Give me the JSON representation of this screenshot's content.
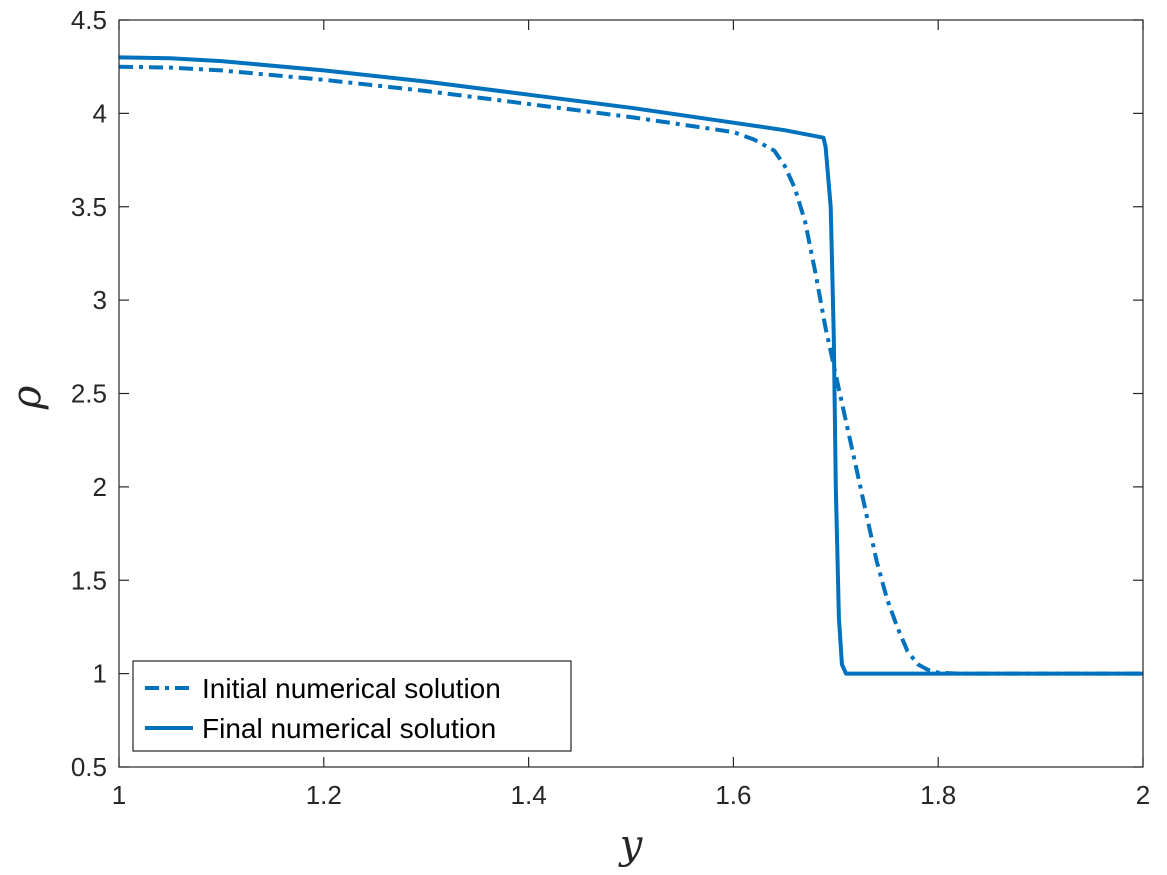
{
  "chart_data": {
    "type": "line",
    "xlabel": "y",
    "ylabel": "ρ",
    "xlim": [
      1,
      2
    ],
    "ylim": [
      0.5,
      4.5
    ],
    "x_ticks": [
      "1",
      "1.2",
      "1.4",
      "1.6",
      "1.8",
      "2"
    ],
    "y_ticks": [
      "0.5",
      "1",
      "1.5",
      "2",
      "2.5",
      "3",
      "3.5",
      "4",
      "4.5"
    ],
    "grid": false,
    "legend_position": "bottom-left",
    "series": [
      {
        "name": "Initial numerical solution",
        "style": "dash-dot",
        "color": "#0072BD",
        "x": [
          1.0,
          1.05,
          1.1,
          1.2,
          1.3,
          1.4,
          1.5,
          1.6,
          1.62,
          1.64,
          1.65,
          1.66,
          1.67,
          1.68,
          1.69,
          1.7,
          1.71,
          1.72,
          1.73,
          1.74,
          1.75,
          1.76,
          1.77,
          1.78,
          1.79,
          1.8,
          1.82,
          1.9,
          2.0
        ],
        "y": [
          4.25,
          4.245,
          4.23,
          4.18,
          4.12,
          4.05,
          3.98,
          3.9,
          3.86,
          3.8,
          3.72,
          3.6,
          3.42,
          3.15,
          2.85,
          2.6,
          2.35,
          2.1,
          1.85,
          1.6,
          1.4,
          1.25,
          1.12,
          1.05,
          1.02,
          1.005,
          1.0,
          1.0,
          1.0
        ]
      },
      {
        "name": "Final numerical solution",
        "style": "solid",
        "color": "#0072BD",
        "x": [
          1.0,
          1.05,
          1.1,
          1.2,
          1.3,
          1.4,
          1.5,
          1.6,
          1.65,
          1.688,
          1.69,
          1.695,
          1.698,
          1.7,
          1.703,
          1.706,
          1.71,
          1.8,
          1.9,
          2.0
        ],
        "y": [
          4.3,
          4.295,
          4.28,
          4.23,
          4.17,
          4.1,
          4.03,
          3.95,
          3.91,
          3.87,
          3.82,
          3.5,
          2.8,
          2.0,
          1.3,
          1.05,
          1.0,
          1.0,
          1.0,
          1.0
        ]
      }
    ]
  }
}
